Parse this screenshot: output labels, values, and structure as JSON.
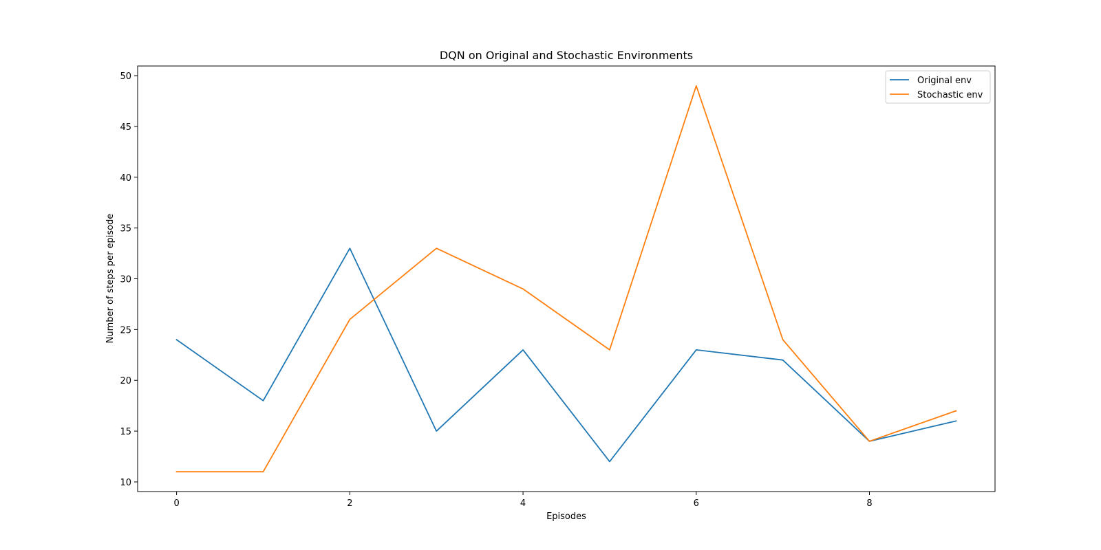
{
  "chart_data": {
    "type": "line",
    "title": "DQN on Original and Stochastic Environments",
    "xlabel": "Episodes",
    "ylabel": "Number of steps per episode",
    "x": [
      0,
      1,
      2,
      3,
      4,
      5,
      6,
      7,
      8,
      9
    ],
    "xlim": [
      -0.45,
      9.45
    ],
    "ylim": [
      9.05,
      50.95
    ],
    "xticks": [
      0,
      2,
      4,
      6,
      8
    ],
    "yticks": [
      10,
      15,
      20,
      25,
      30,
      35,
      40,
      45,
      50
    ],
    "grid": false,
    "legend_position": "top-right",
    "series": [
      {
        "name": "Original env",
        "color": "#1f77b4",
        "values": [
          24,
          18,
          33,
          15,
          23,
          12,
          23,
          22,
          14,
          16
        ]
      },
      {
        "name": "Stochastic env",
        "color": "#ff7f0e",
        "values": [
          11,
          11,
          26,
          33,
          29,
          23,
          49,
          24,
          14,
          17
        ]
      }
    ]
  }
}
